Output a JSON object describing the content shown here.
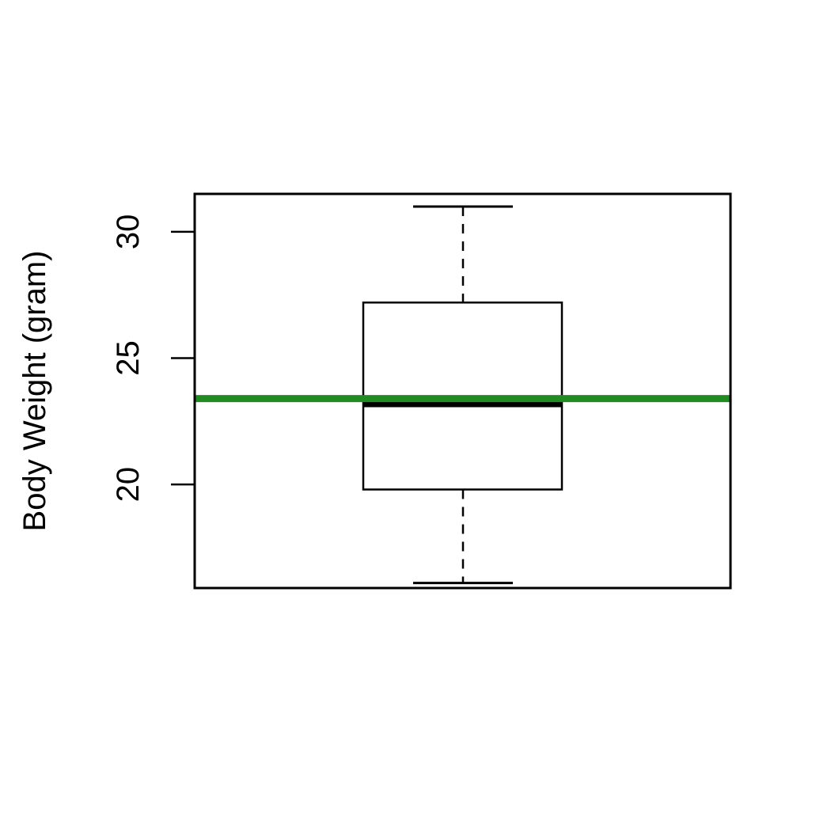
{
  "chart_data": {
    "type": "box",
    "title": "",
    "xlabel": "",
    "ylabel": "Body Weight (gram)",
    "ylim": [
      15.9,
      31.5
    ],
    "yticks": [
      20,
      25,
      30
    ],
    "grid": false,
    "box": {
      "whisker_low": 16.1,
      "q1": 19.8,
      "median": 23.2,
      "q3": 27.2,
      "whisker_high": 31.0
    },
    "reference_line": {
      "value": 23.4,
      "color": "#228B22"
    },
    "colors": {
      "box": "#000000",
      "median": "#000000",
      "reference": "#228B22"
    }
  }
}
